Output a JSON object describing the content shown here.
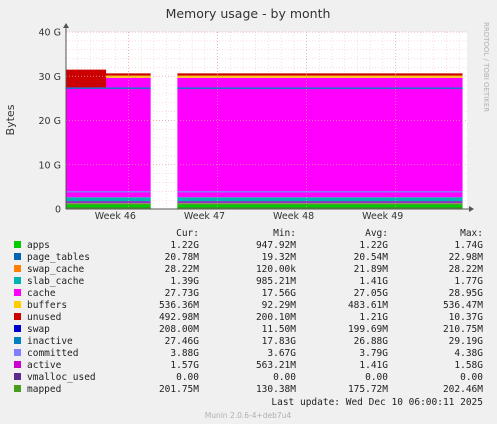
{
  "chart_data": {
    "type": "area",
    "title": "Memory usage - by month",
    "ylabel": "Bytes",
    "y_ticks": [
      "0",
      "10 G",
      "20 G",
      "30 G",
      "40 G"
    ],
    "ylim": [
      0,
      40
    ],
    "y_unit": "G",
    "x_ticks": [
      "Week 46",
      "Week 47",
      "Week 48",
      "Week 49"
    ],
    "x_range_weeks": [
      45.3,
      49.8
    ],
    "gap_weeks": [
      46.25,
      46.55
    ],
    "grid": true,
    "side_text": "RRDTOOL / TOBI OETIKER",
    "columns": [
      "Cur:",
      "Min:",
      "Avg:",
      "Max:"
    ],
    "series": [
      {
        "name": "apps",
        "color": "#00cc00",
        "cur": "1.22G",
        "min": "947.92M",
        "avg": "1.22G",
        "max": "1.74G",
        "level": 1.2
      },
      {
        "name": "page_tables",
        "color": "#0066b3",
        "cur": "20.78M",
        "min": "19.32M",
        "avg": "20.54M",
        "max": "22.98M",
        "level": 0.02
      },
      {
        "name": "swap_cache",
        "color": "#ff8000",
        "cur": "28.22M",
        "min": "120.00k",
        "avg": "21.89M",
        "max": "28.22M",
        "level": 0.03
      },
      {
        "name": "slab_cache",
        "color": "#00b3b3",
        "cur": "1.39G",
        "min": "985.21M",
        "avg": "1.41G",
        "max": "1.77G",
        "level": 1.4
      },
      {
        "name": "cache",
        "color": "#ff00ff",
        "cur": "27.73G",
        "min": "17.56G",
        "avg": "27.05G",
        "max": "28.95G",
        "level": 27.0
      },
      {
        "name": "buffers",
        "color": "#ffcc00",
        "cur": "536.36M",
        "min": "92.29M",
        "avg": "483.61M",
        "max": "536.47M",
        "level": 0.5
      },
      {
        "name": "unused",
        "color": "#cc0000",
        "cur": "492.98M",
        "min": "200.10M",
        "avg": "1.21G",
        "max": "10.37G",
        "level": 0.5
      },
      {
        "name": "swap",
        "color": "#0000cc",
        "cur": "208.00M",
        "min": "11.50M",
        "avg": "199.69M",
        "max": "210.75M",
        "level": 0.2
      },
      {
        "name": "inactive",
        "color": "#0080c0",
        "cur": "27.46G",
        "min": "17.83G",
        "avg": "26.88G",
        "max": "29.19G",
        "level": 27.3
      },
      {
        "name": "committed",
        "color": "#8080ff",
        "cur": "3.88G",
        "min": "3.67G",
        "avg": "3.79G",
        "max": "4.38G",
        "level": 3.88
      },
      {
        "name": "active",
        "color": "#cc00cc",
        "cur": "1.57G",
        "min": "563.21M",
        "avg": "1.41G",
        "max": "1.58G",
        "level": 1.57
      },
      {
        "name": "vmalloc_used",
        "color": "#5f2a8c",
        "cur": "0.00",
        "min": "0.00",
        "avg": "0.00",
        "max": "0.00",
        "level": 0
      },
      {
        "name": "mapped",
        "color": "#4a9d1e",
        "cur": "201.75M",
        "min": "130.38M",
        "avg": "175.72M",
        "max": "202.46M",
        "level": 0.2
      }
    ],
    "last_update": "Last update: Wed Dec 10 06:00:11 2025",
    "footer": "Munin 2.0.6-4+deb7u4"
  }
}
